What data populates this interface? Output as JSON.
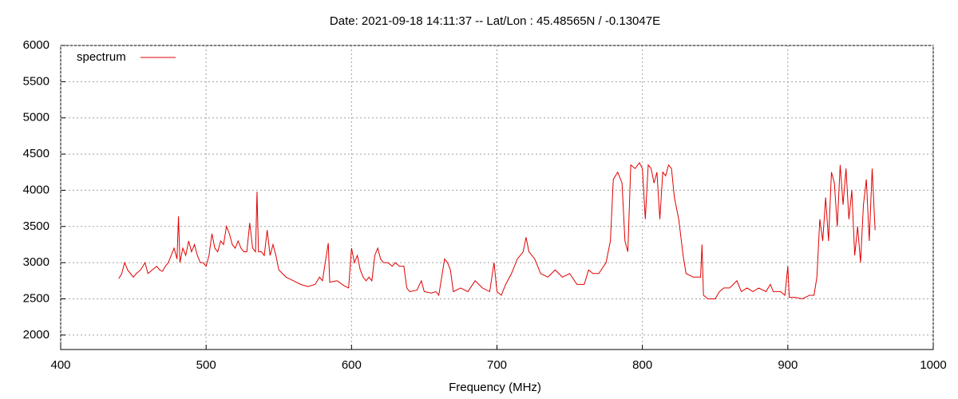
{
  "chart_data": {
    "type": "line",
    "title": "Date: 2021-09-18 14:11:37  --  Lat/Lon : 45.48565N / -0.13047E",
    "xlabel": "Frequency (MHz)",
    "xlim": [
      400,
      1000
    ],
    "xticks": [
      400,
      500,
      600,
      700,
      800,
      900,
      1000
    ],
    "ylim": [
      1800,
      6000
    ],
    "yticks": [
      2000,
      2500,
      3000,
      3500,
      4000,
      4500,
      5000,
      5500,
      6000
    ],
    "grid": true,
    "legend": "top-left",
    "x": [
      440,
      442,
      444,
      446,
      448,
      450,
      452,
      455,
      458,
      460,
      463,
      466,
      468,
      470,
      472,
      474,
      476,
      478,
      480,
      481,
      482,
      484,
      486,
      488,
      490,
      492,
      494,
      496,
      498,
      500,
      502,
      504,
      506,
      508,
      510,
      512,
      514,
      516,
      518,
      520,
      522,
      524,
      526,
      528,
      530,
      532,
      534,
      535,
      536,
      538,
      540,
      542,
      544,
      546,
      548,
      550,
      555,
      560,
      565,
      570,
      575,
      578,
      580,
      584,
      585,
      590,
      595,
      598,
      600,
      602,
      604,
      606,
      608,
      610,
      612,
      614,
      616,
      618,
      620,
      622,
      625,
      628,
      630,
      633,
      636,
      638,
      640,
      645,
      648,
      650,
      655,
      658,
      660,
      662,
      664,
      666,
      668,
      670,
      675,
      680,
      685,
      690,
      695,
      698,
      700,
      703,
      706,
      710,
      714,
      718,
      720,
      722,
      726,
      730,
      735,
      740,
      745,
      750,
      755,
      760,
      763,
      766,
      770,
      775,
      778,
      780,
      783,
      786,
      788,
      790,
      792,
      795,
      798,
      800,
      802,
      804,
      806,
      808,
      810,
      812,
      814,
      816,
      818,
      820,
      822,
      825,
      828,
      830,
      835,
      840,
      841,
      842,
      845,
      850,
      853,
      856,
      860,
      865,
      868,
      872,
      876,
      880,
      885,
      888,
      890,
      895,
      898,
      900,
      901,
      905,
      910,
      915,
      918,
      920,
      922,
      924,
      926,
      928,
      930,
      932,
      934,
      936,
      938,
      940,
      942,
      944,
      946,
      948,
      950,
      952,
      954,
      956,
      958,
      960
    ],
    "series": [
      {
        "name": "spectrum",
        "color": "#e00000",
        "values": [
          2780,
          2850,
          3000,
          2900,
          2850,
          2800,
          2850,
          2900,
          3000,
          2850,
          2900,
          2950,
          2900,
          2880,
          2950,
          3000,
          3100,
          3200,
          3050,
          3640,
          3000,
          3200,
          3100,
          3300,
          3150,
          3250,
          3100,
          3000,
          3000,
          2950,
          3100,
          3400,
          3200,
          3150,
          3300,
          3250,
          3500,
          3400,
          3250,
          3200,
          3300,
          3200,
          3150,
          3150,
          3550,
          3200,
          3150,
          3980,
          3150,
          3150,
          3100,
          3450,
          3100,
          3250,
          3100,
          2900,
          2800,
          2750,
          2700,
          2670,
          2700,
          2800,
          2750,
          3270,
          2730,
          2750,
          2680,
          2650,
          3200,
          3000,
          3100,
          2900,
          2800,
          2750,
          2800,
          2750,
          3100,
          3200,
          3050,
          3000,
          3000,
          2950,
          3000,
          2950,
          2950,
          2650,
          2600,
          2620,
          2750,
          2600,
          2580,
          2600,
          2550,
          2800,
          3050,
          3000,
          2900,
          2600,
          2650,
          2600,
          2750,
          2650,
          2600,
          3000,
          2600,
          2550,
          2700,
          2850,
          3050,
          3150,
          3350,
          3150,
          3050,
          2850,
          2800,
          2900,
          2800,
          2850,
          2700,
          2700,
          2900,
          2850,
          2850,
          3000,
          3300,
          4150,
          4250,
          4100,
          3300,
          3150,
          4350,
          4300,
          4380,
          4300,
          3600,
          4350,
          4300,
          4100,
          4250,
          3600,
          4250,
          4200,
          4350,
          4300,
          3900,
          3600,
          3100,
          2850,
          2800,
          2800,
          3250,
          2550,
          2500,
          2500,
          2600,
          2650,
          2650,
          2750,
          2600,
          2650,
          2600,
          2650,
          2600,
          2700,
          2600,
          2600,
          2550,
          2950,
          2520,
          2520,
          2500,
          2550,
          2550,
          2800,
          3600,
          3300,
          3900,
          3300,
          4250,
          4100,
          3500,
          4350,
          3800,
          4300,
          3600,
          4000,
          3100,
          3500,
          3000,
          3800,
          4150,
          3300,
          4300,
          3450
        ]
      }
    ]
  }
}
